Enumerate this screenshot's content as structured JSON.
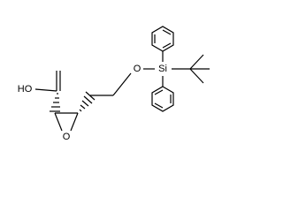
{
  "atoms": {
    "hydroxyl": "HO",
    "epoxide_oxygen": "O",
    "ether_oxygen": "O",
    "silicon": "Si"
  }
}
